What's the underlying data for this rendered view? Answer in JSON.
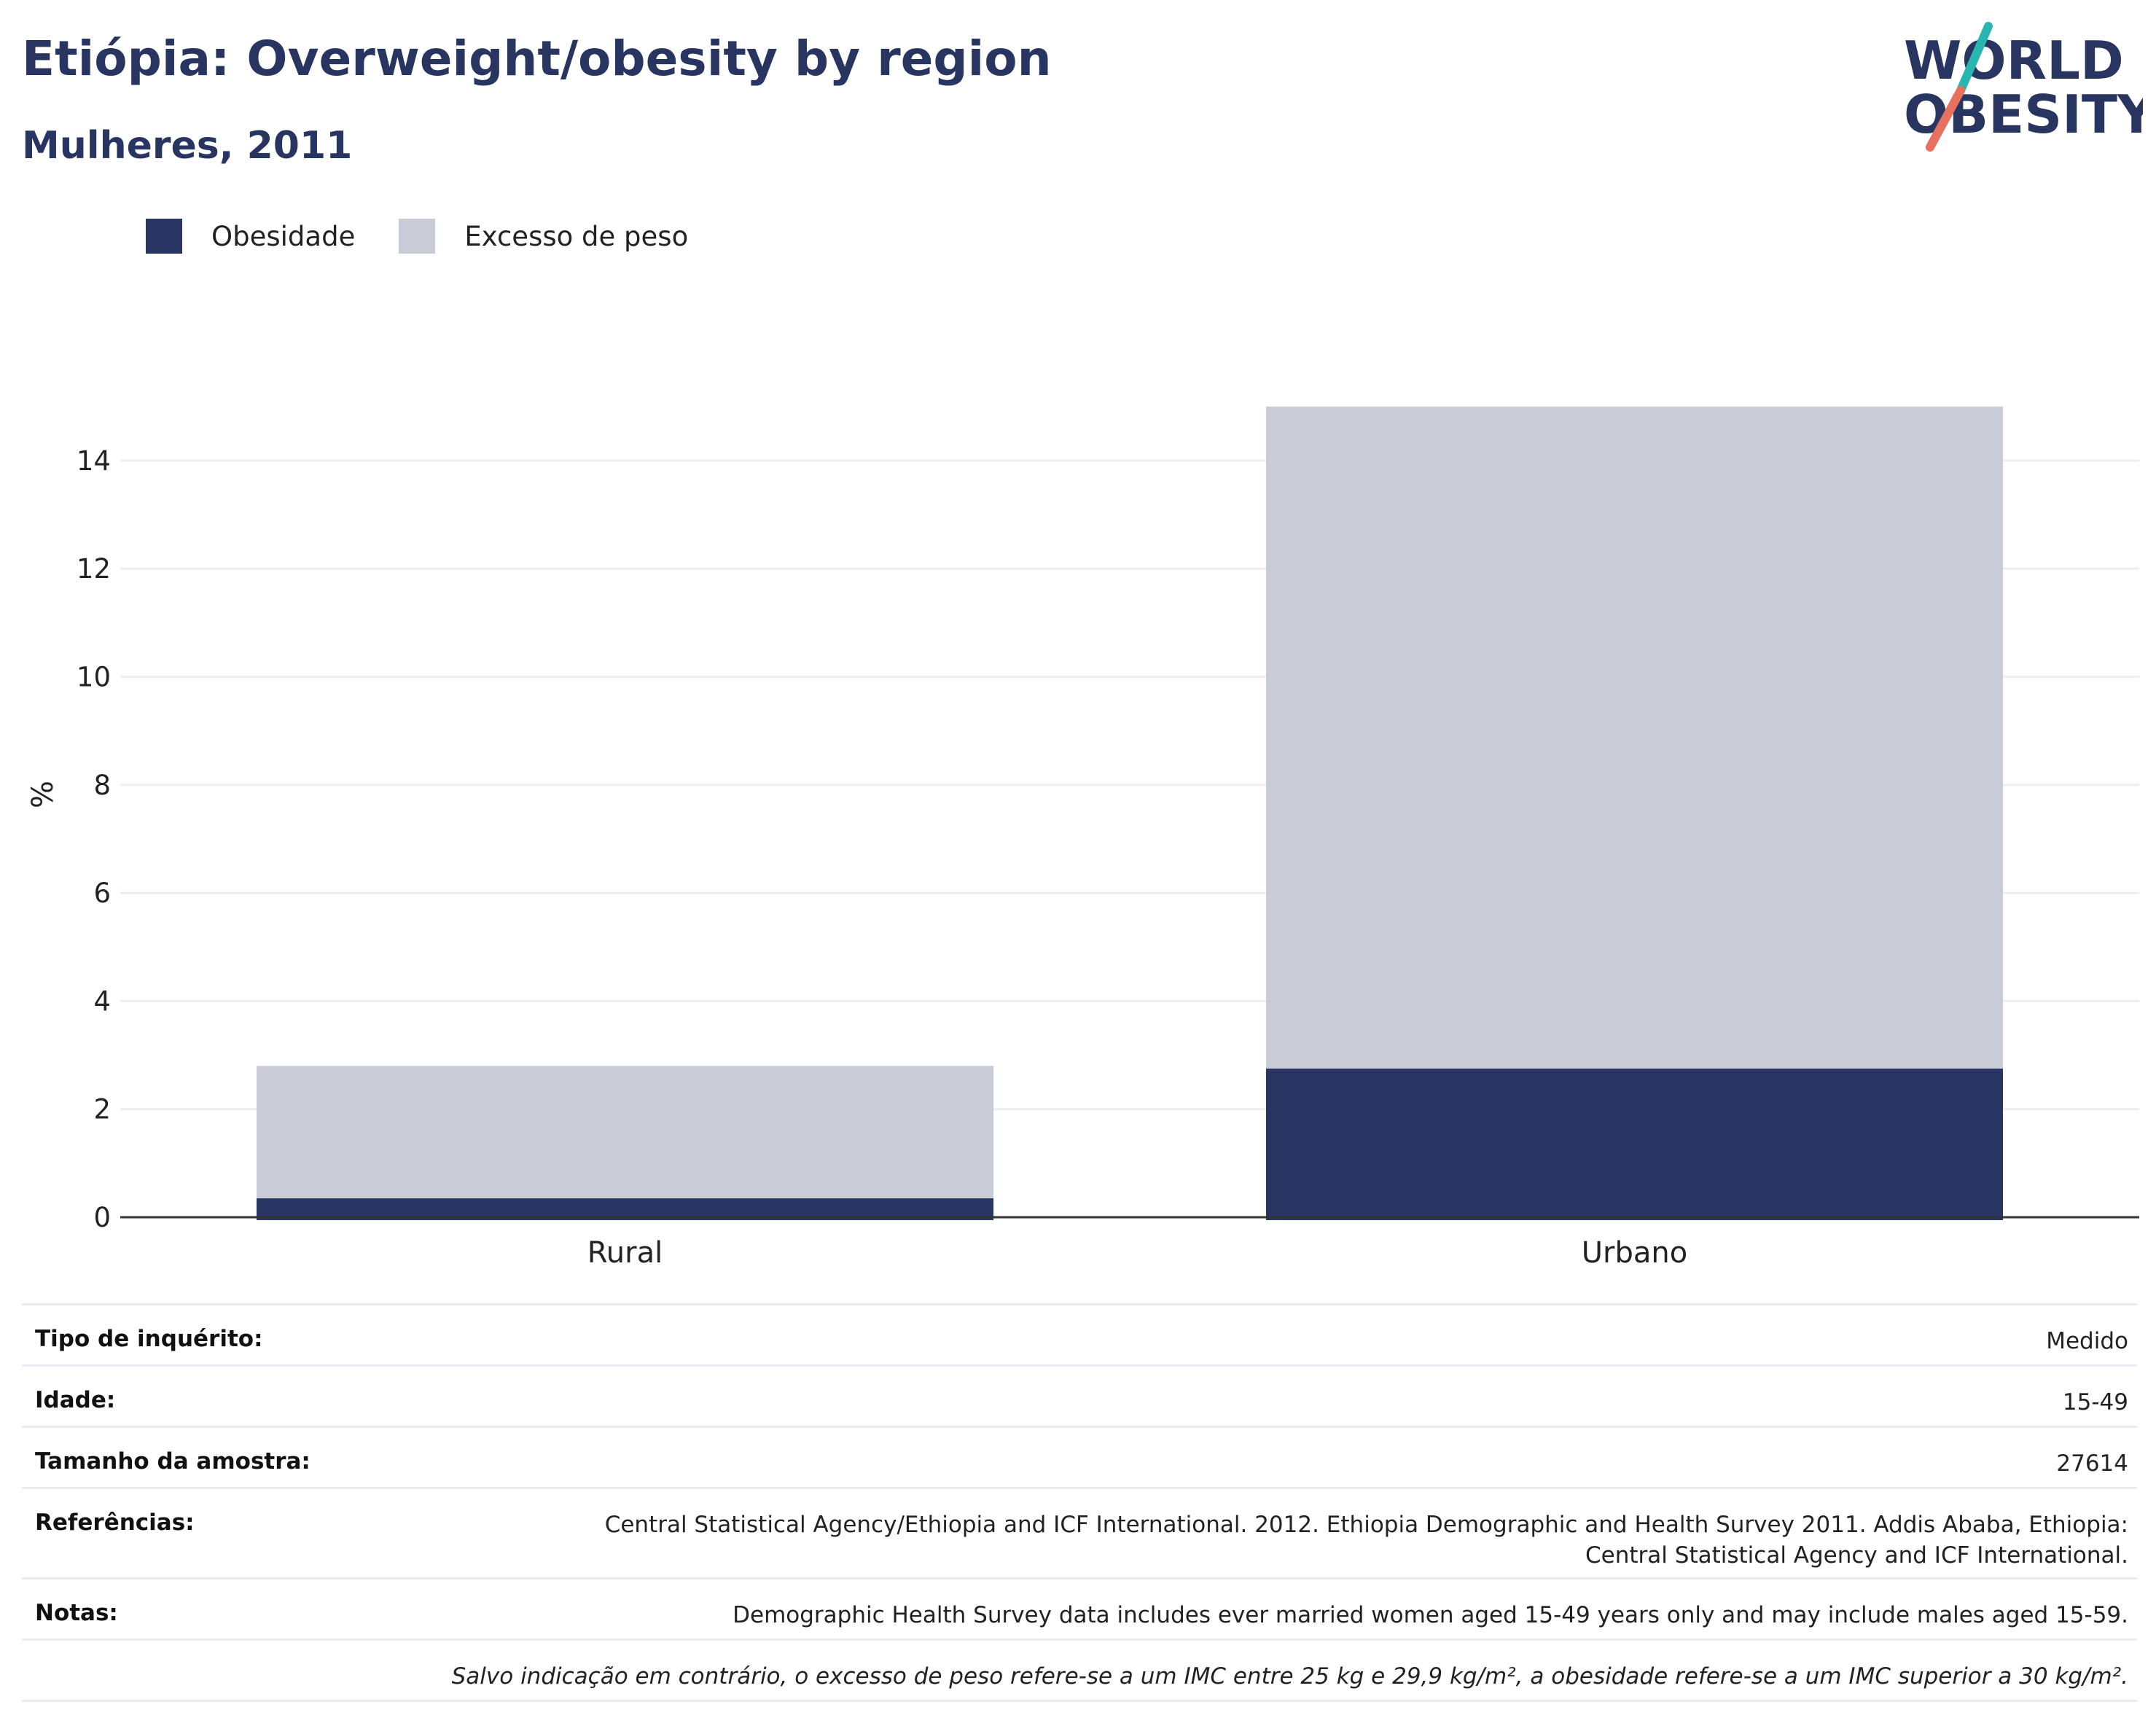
{
  "title": "Etiópia: Overweight/obesity by region",
  "subtitle": "Mulheres, 2011",
  "logo": {
    "line1": "WORLD",
    "line2": "OBESITY"
  },
  "colors": {
    "obesity": "#283562",
    "overweight": "#c9ccd7",
    "title": "#283560"
  },
  "chart_data": {
    "type": "bar",
    "stacked": true,
    "categories": [
      "Rural",
      "Urbano"
    ],
    "series": [
      {
        "name": "Obesidade",
        "values": [
          0.35,
          2.75
        ],
        "color": "#283562"
      },
      {
        "name": "Excesso de peso",
        "values": [
          2.45,
          12.25
        ],
        "color": "#c9ccd7"
      }
    ],
    "ylabel": "%",
    "ylim": [
      0,
      15
    ],
    "yticks": [
      0,
      2,
      4,
      6,
      8,
      10,
      12,
      14
    ],
    "grid": true,
    "legend": "top-left"
  },
  "info": {
    "rows": [
      {
        "key": "Tipo de inquérito:",
        "value": "Medido"
      },
      {
        "key": "Idade:",
        "value": "15-49"
      },
      {
        "key": "Tamanho da amostra:",
        "value": "27614"
      },
      {
        "key": "Referências:",
        "value": "Central Statistical Agency/Ethiopia and ICF International. 2012. Ethiopia Demographic and Health Survey 2011. Addis Ababa, Ethiopia: Central Statistical Agency and ICF International."
      },
      {
        "key": "Notas:",
        "value": "Demographic Health Survey data includes ever married women aged 15-49 years only and may include males aged 15-59."
      }
    ],
    "footnote": "Salvo indicação em contrário, o excesso de peso refere-se a um IMC entre 25 kg e 29,9 kg/m², a obesidade refere-se a um IMC superior a 30 kg/m²."
  }
}
